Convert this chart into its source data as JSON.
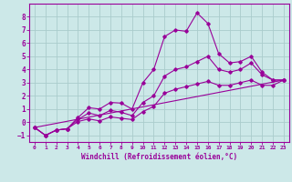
{
  "title": "",
  "xlabel": "Windchill (Refroidissement éolien,°C)",
  "bg_color": "#cce8e8",
  "line_color": "#990099",
  "grid_color": "#aacccc",
  "spine_color": "#990099",
  "xlim": [
    -0.5,
    23.5
  ],
  "ylim": [
    -1.5,
    9.0
  ],
  "xticks": [
    0,
    1,
    2,
    3,
    4,
    5,
    6,
    7,
    8,
    9,
    10,
    11,
    12,
    13,
    14,
    15,
    16,
    17,
    18,
    19,
    20,
    21,
    22,
    23
  ],
  "yticks": [
    -1,
    0,
    1,
    2,
    3,
    4,
    5,
    6,
    7,
    8
  ],
  "curve1_x": [
    0,
    1,
    2,
    3,
    4,
    5,
    6,
    7,
    8,
    9,
    10,
    11,
    12,
    13,
    14,
    15,
    16,
    17,
    18,
    19,
    20,
    21,
    22,
    23
  ],
  "curve1_y": [
    -0.4,
    -1.0,
    -0.6,
    -0.5,
    0.35,
    1.1,
    1.0,
    1.5,
    1.45,
    1.0,
    3.0,
    4.0,
    6.5,
    7.0,
    6.9,
    8.3,
    7.5,
    5.2,
    4.5,
    4.6,
    5.0,
    3.8,
    3.2,
    3.2
  ],
  "curve2_x": [
    0,
    1,
    2,
    3,
    4,
    5,
    6,
    7,
    8,
    9,
    10,
    11,
    12,
    13,
    14,
    15,
    16,
    17,
    18,
    19,
    20,
    21,
    22,
    23
  ],
  "curve2_y": [
    -0.4,
    -1.0,
    -0.6,
    -0.5,
    0.2,
    0.7,
    0.5,
    0.9,
    0.75,
    0.5,
    1.5,
    2.0,
    3.5,
    4.0,
    4.2,
    4.6,
    5.0,
    4.0,
    3.8,
    4.0,
    4.5,
    3.6,
    3.2,
    3.2
  ],
  "curve3_x": [
    0,
    1,
    2,
    3,
    4,
    5,
    6,
    7,
    8,
    9,
    10,
    11,
    12,
    13,
    14,
    15,
    16,
    17,
    18,
    19,
    20,
    21,
    22,
    23
  ],
  "curve3_y": [
    -0.4,
    -1.0,
    -0.6,
    -0.5,
    0.05,
    0.25,
    0.1,
    0.4,
    0.3,
    0.2,
    0.8,
    1.2,
    2.2,
    2.5,
    2.7,
    2.9,
    3.1,
    2.8,
    2.8,
    3.0,
    3.2,
    2.8,
    2.8,
    3.2
  ],
  "line_x": [
    0,
    23
  ],
  "line_y": [
    -0.4,
    3.2
  ]
}
